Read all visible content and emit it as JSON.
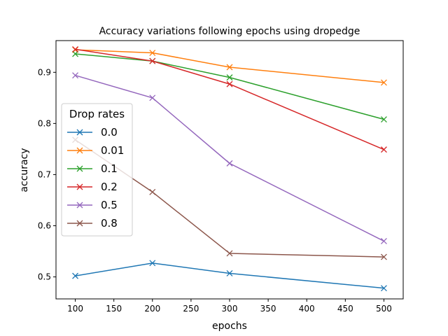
{
  "chart_data": {
    "type": "line",
    "title": "Accuracy variations following epochs using dropedge",
    "xlabel": "epochs",
    "ylabel": "accuracy",
    "x": [
      100,
      200,
      300,
      500
    ],
    "xlim": [
      75,
      525
    ],
    "ylim": [
      0.457,
      0.962
    ],
    "xticks": [
      100,
      150,
      200,
      250,
      300,
      350,
      400,
      450,
      500
    ],
    "yticks": [
      0.5,
      0.6,
      0.7,
      0.8,
      0.9
    ],
    "grid": false,
    "marker": "x",
    "legend": {
      "title": "Drop rates",
      "placement": "center-left"
    },
    "series": [
      {
        "name": "0.0",
        "color": "#1f77b4",
        "values": [
          0.502,
          0.527,
          0.507,
          0.478
        ]
      },
      {
        "name": "0.01",
        "color": "#ff7f0e",
        "values": [
          0.944,
          0.938,
          0.91,
          0.88
        ]
      },
      {
        "name": "0.1",
        "color": "#2ca02c",
        "values": [
          0.936,
          0.922,
          0.89,
          0.808
        ]
      },
      {
        "name": "0.2",
        "color": "#d62728",
        "values": [
          0.945,
          0.922,
          0.877,
          0.749
        ]
      },
      {
        "name": "0.5",
        "color": "#9467bd",
        "values": [
          0.894,
          0.85,
          0.722,
          0.57
        ]
      },
      {
        "name": "0.8",
        "color": "#8c564b",
        "values": [
          0.768,
          0.666,
          0.546,
          0.539
        ]
      }
    ]
  }
}
